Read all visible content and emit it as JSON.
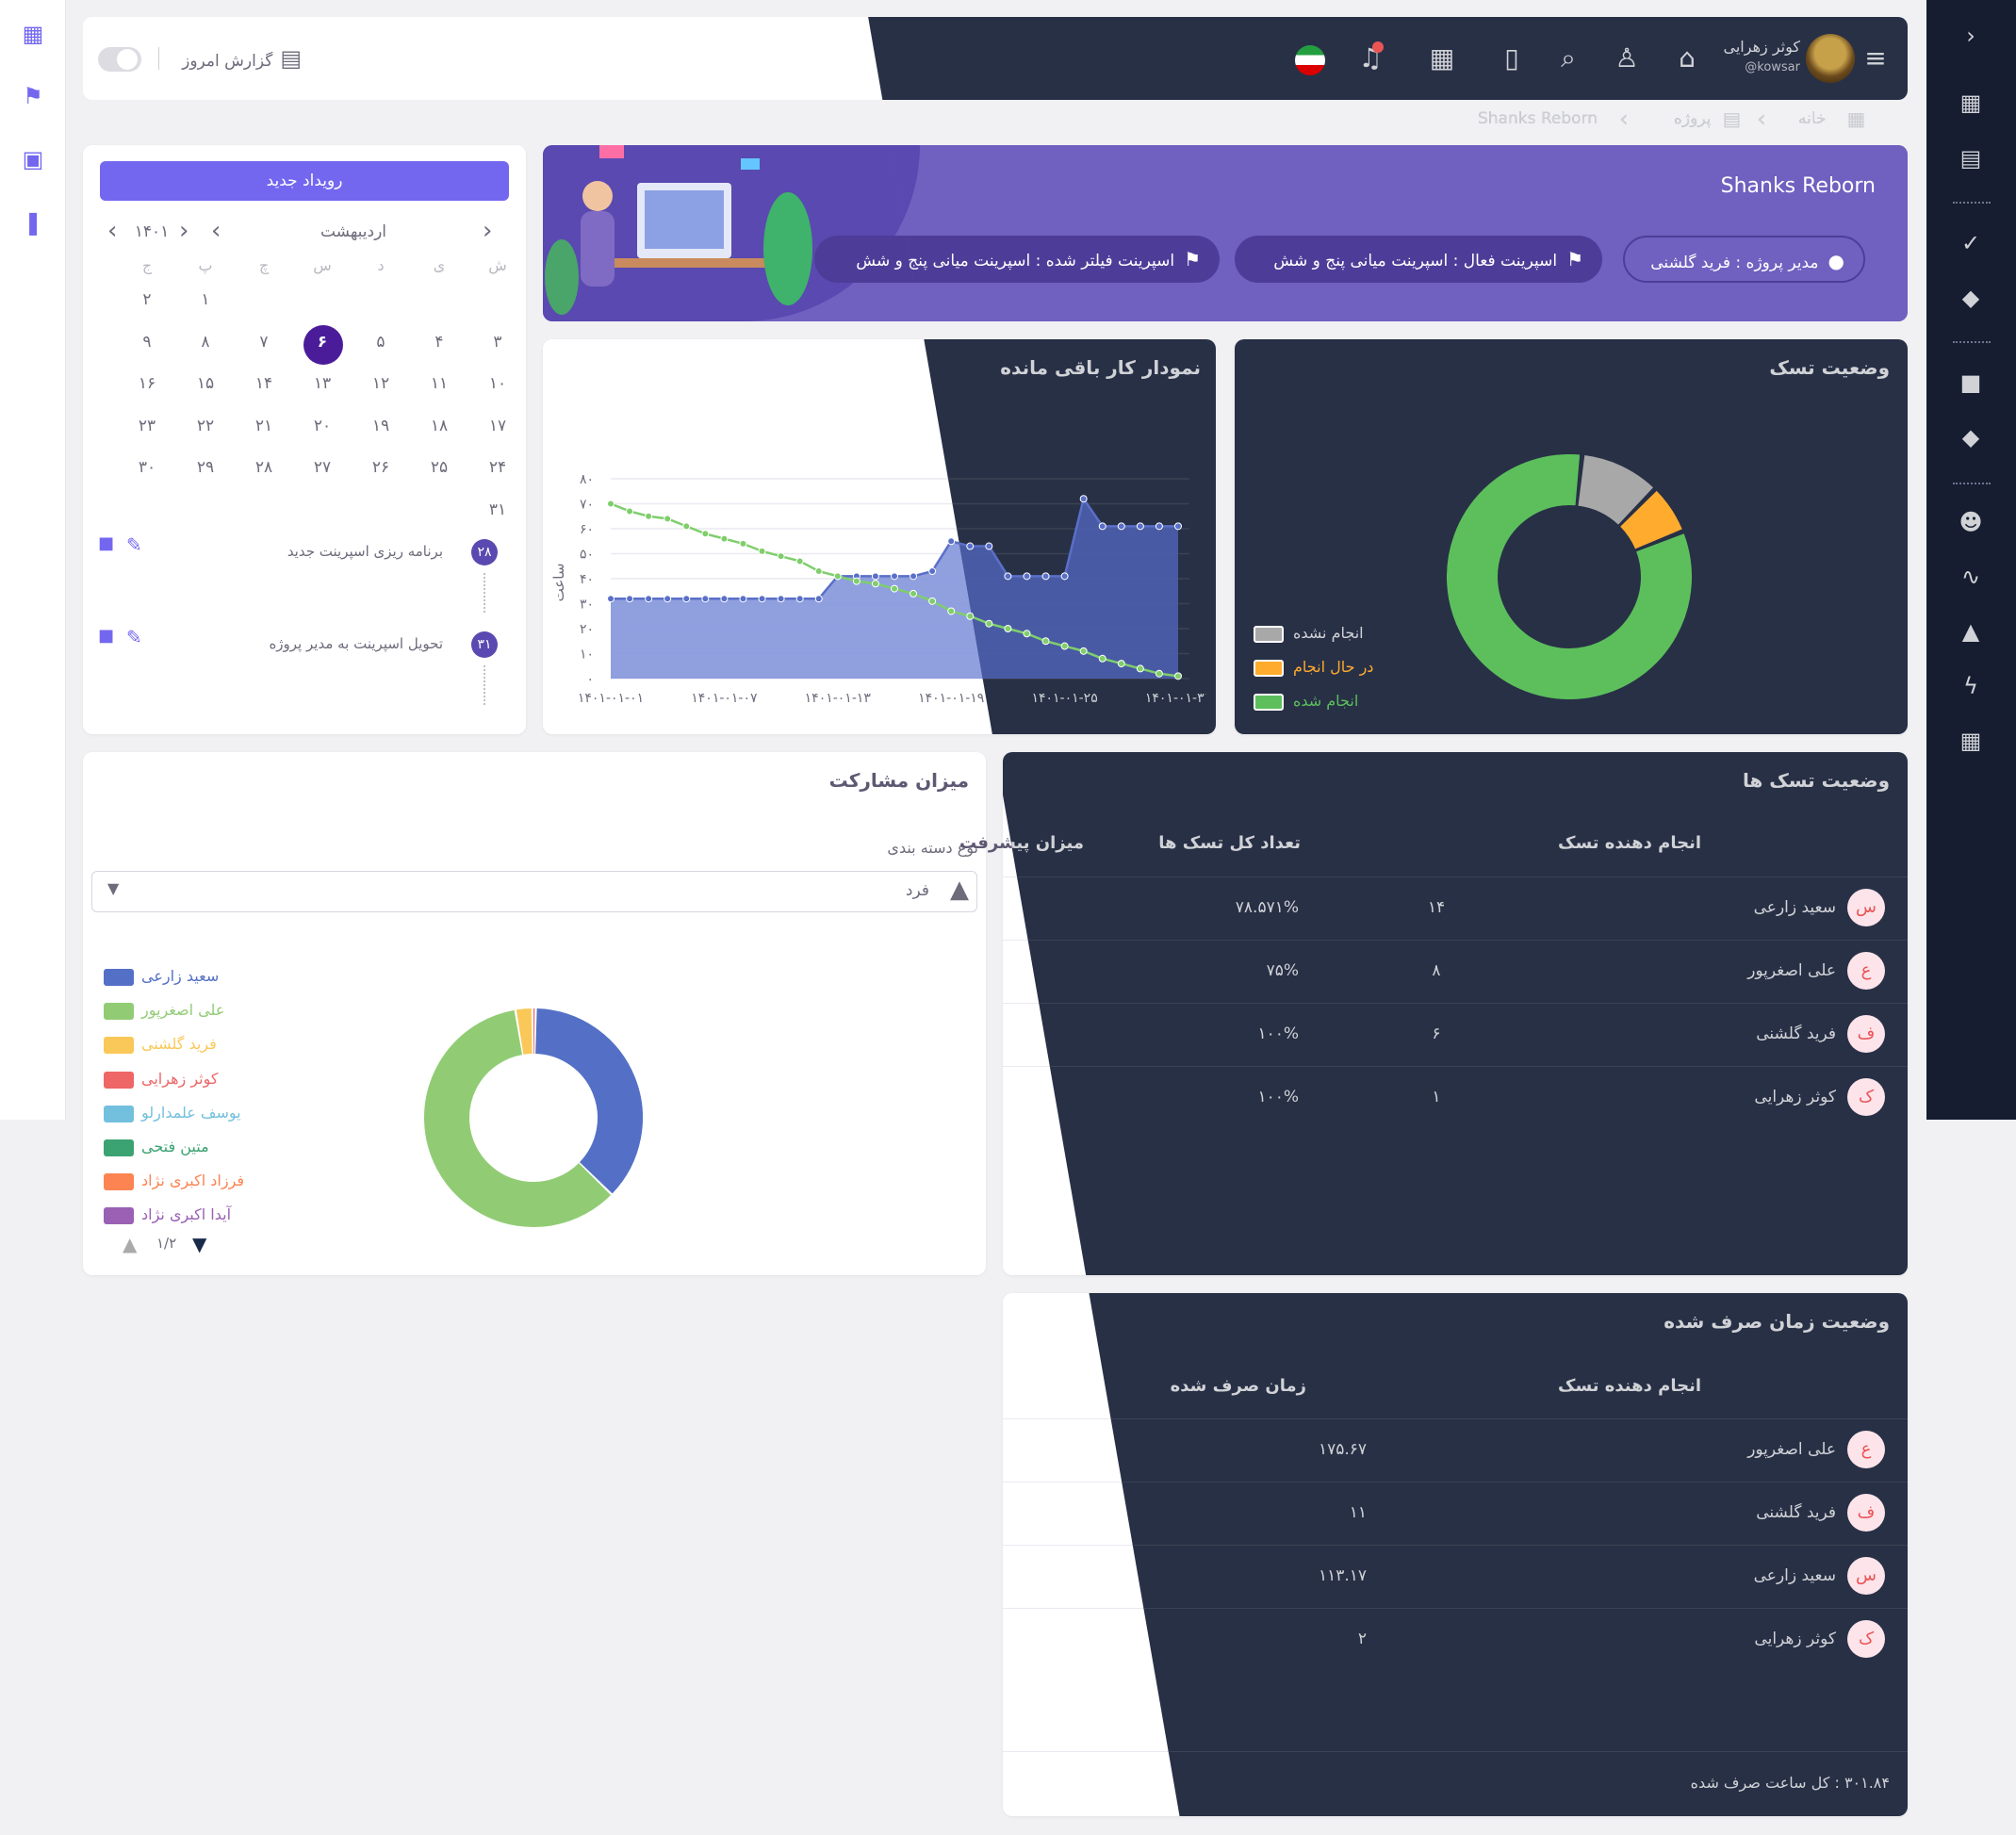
{
  "header": {
    "user_name": "کوثر زهرایی",
    "user_handle": "@kowsar",
    "today_report": "گزارش امروز",
    "icons": [
      "menu-icon",
      "home-icon",
      "user-icon",
      "search-icon",
      "file-icon",
      "calendar-icon",
      "bell-icon",
      "flag-iran-icon"
    ]
  },
  "breadcrumb": {
    "home": "خانه",
    "project": "پروژه",
    "current": "Shanks Reborn"
  },
  "banner": {
    "title": "Shanks Reborn",
    "manager": "مدیر پروژه : فرید گلشنی",
    "active_sprint": "اسپرینت فعال : اسپرینت میانی پنج و شش",
    "filtered_sprint": "اسپرینت فیلتر شده : اسپرینت میانی پنج و شش"
  },
  "calendar": {
    "new_event": "رویداد جدید",
    "month": "اردیبهشت",
    "year": "۱۴۰۱",
    "weekdays": [
      "ش",
      "ی",
      "د",
      "س",
      "چ",
      "پ",
      "ج"
    ],
    "rows": [
      [
        "",
        "",
        "",
        "",
        "",
        "۱",
        "۲"
      ],
      [
        "۳",
        "۴",
        "۵",
        "۶",
        "۷",
        "۸",
        "۹"
      ],
      [
        "۱۰",
        "۱۱",
        "۱۲",
        "۱۳",
        "۱۴",
        "۱۵",
        "۱۶"
      ],
      [
        "۱۷",
        "۱۸",
        "۱۹",
        "۲۰",
        "۲۱",
        "۲۲",
        "۲۳"
      ],
      [
        "۲۴",
        "۲۵",
        "۲۶",
        "۲۷",
        "۲۸",
        "۲۹",
        "۳۰"
      ],
      [
        "۳۱",
        "",
        "",
        "",
        "",
        "",
        ""
      ]
    ],
    "selected": "۶",
    "events": [
      {
        "day": "۲۸",
        "title": "برنامه ریزی اسپرینت جدید"
      },
      {
        "day": "۳۱",
        "title": "تحویل اسپرینت به مدیر پروژه"
      }
    ]
  },
  "task_status": {
    "title": "وضعیت تسک",
    "legend": [
      {
        "label": "انجام نشده",
        "color": "#a8a8a8"
      },
      {
        "label": "در حال انجام",
        "color": "#ffab2e"
      },
      {
        "label": "انجام شده",
        "color": "#5cbf5c"
      }
    ]
  },
  "burndown": {
    "title": "نمودار کار باقی مانده",
    "ylabel": "ساعت"
  },
  "chart_data": [
    {
      "type": "pie",
      "title": "وضعیت تسک",
      "labels": [
        "انجام شده",
        "در حال انجام",
        "انجام نشده"
      ],
      "values": [
        84,
        6,
        10
      ]
    },
    {
      "type": "line",
      "title": "نمودار کار باقی مانده",
      "ylabel": "ساعت",
      "ylim": [
        0,
        80
      ],
      "yticks": [
        "۰",
        "۱۰",
        "۲۰",
        "۳۰",
        "۴۰",
        "۵۰",
        "۶۰",
        "۷۰",
        "۸۰"
      ],
      "xticks": [
        "۱۴۰۱-۰۱-۰۱",
        "۱۴۰۱-۰۱-۰۷",
        "۱۴۰۱-۰۱-۱۳",
        "۱۴۰۱-۰۱-۱۹",
        "۱۴۰۱-۰۱-۲۵",
        "۱۴۰۱-۰۱-۳۱"
      ],
      "series": [
        {
          "color": "#5a6fc8",
          "values": [
            32,
            32,
            32,
            32,
            32,
            32,
            32,
            32,
            32,
            32,
            32,
            32,
            41,
            41,
            41,
            41,
            41,
            43,
            55,
            53,
            53,
            41,
            41,
            41,
            41,
            72,
            61,
            61,
            61,
            61,
            61
          ]
        },
        {
          "color": "#7fce6c",
          "values": [
            70,
            67,
            65,
            64,
            61,
            58,
            56,
            54,
            51,
            49,
            47,
            43,
            41,
            39,
            38,
            36,
            34,
            31,
            27,
            25,
            22,
            20,
            18,
            15,
            13,
            11,
            8,
            6,
            4,
            2,
            1
          ]
        }
      ]
    },
    {
      "type": "pie",
      "title": "میزان مشارکت",
      "labels": [
        "سعید زارعی",
        "علی اصغرپور",
        "فرید گلشنی",
        "کوثر زهرایی",
        "یوسف علمدارلو",
        "متین فتحی",
        "فرزاد اکبری نژاد",
        "آیدا اکبری نژاد"
      ],
      "values": [
        37,
        60,
        2.5,
        0.5,
        0,
        0,
        0,
        0
      ]
    }
  ],
  "participation": {
    "title": "میزان مشارکت",
    "group_label": "نوع دسته بندی",
    "group_value": "فرد",
    "legend": [
      {
        "label": "سعید زارعی",
        "color": "#5470c6"
      },
      {
        "label": "علی اصغرپور",
        "color": "#91cc75"
      },
      {
        "label": "فرید گلشنی",
        "color": "#fac858"
      },
      {
        "label": "کوثر زهرایی",
        "color": "#ee6666"
      },
      {
        "label": "یوسف علمدارلو",
        "color": "#73c0de"
      },
      {
        "label": "متین فتحی",
        "color": "#3ba272"
      },
      {
        "label": "فرزاد اکبری نژاد",
        "color": "#fc8452"
      },
      {
        "label": "آیدا اکبری نژاد",
        "color": "#9a60b4"
      }
    ],
    "page": "۱/۲"
  },
  "task_table": {
    "title": "وضعیت تسک ها",
    "columns": [
      "انجام دهنده تسک",
      "تعداد کل تسک ها",
      "میزان پیشرفت"
    ],
    "rows": [
      {
        "initial": "س",
        "name": "سعید زارعی",
        "count": "۱۴",
        "progress": "۷۸.۵۷۱%"
      },
      {
        "initial": "ع",
        "name": "علی اصغرپور",
        "count": "۸",
        "progress": "۷۵%"
      },
      {
        "initial": "ف",
        "name": "فرید گلشنی",
        "count": "۶",
        "progress": "۱۰۰%"
      },
      {
        "initial": "ک",
        "name": "کوثر زهرایی",
        "count": "۱",
        "progress": "۱۰۰%"
      }
    ]
  },
  "time_table": {
    "title": "وضعیت زمان صرف شده",
    "columns": [
      "انجام دهنده تسک",
      "زمان صرف شده"
    ],
    "rows": [
      {
        "initial": "ع",
        "name": "علی اصغرپور",
        "time": "۱۷۵.۶۷"
      },
      {
        "initial": "ف",
        "name": "فرید گلشنی",
        "time": "۱۱"
      },
      {
        "initial": "س",
        "name": "سعید زارعی",
        "time": "۱۱۳.۱۷"
      },
      {
        "initial": "ک",
        "name": "کوثر زهرایی",
        "time": "۲"
      }
    ],
    "total": "۳۰۱.۸۴ : کل ساعت صرف شده"
  }
}
